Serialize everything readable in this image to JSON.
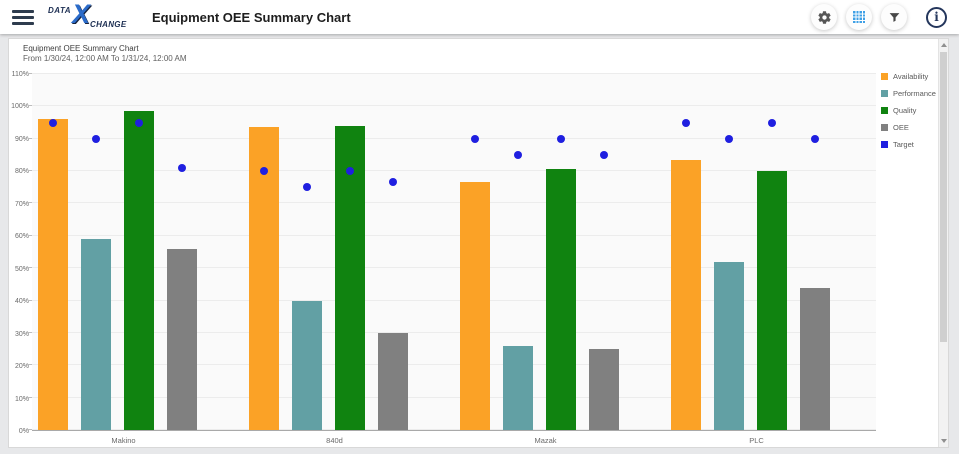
{
  "header": {
    "logo": {
      "part1": "DATA",
      "x": "X",
      "part2": "CHANGE"
    },
    "title": "Equipment OEE Summary Chart",
    "icons": [
      "settings-gear-icon",
      "grid-view-icon",
      "filter-funnel-icon",
      "info-icon"
    ],
    "info_glyph": "i"
  },
  "chart": {
    "title": "Equipment OEE Summary Chart",
    "subtitle": "From 1/30/24, 12:00 AM To 1/31/24, 12:00 AM"
  },
  "chart_data": {
    "type": "bar",
    "title": "Equipment OEE Summary Chart",
    "subtitle": "From 1/30/24, 12:00 AM To 1/31/24, 12:00 AM",
    "categories": [
      "Makino",
      "840d",
      "Mazak",
      "PLC"
    ],
    "series": [
      {
        "name": "Availability",
        "color": "#FBA226",
        "values": [
          96,
          93.5,
          76.5,
          83.5
        ]
      },
      {
        "name": "Performance",
        "color": "#62A0A4",
        "values": [
          59,
          40,
          26,
          52
        ]
      },
      {
        "name": "Quality",
        "color": "#108310",
        "values": [
          98.5,
          94,
          80.5,
          80
        ]
      },
      {
        "name": "OEE",
        "color": "#808080",
        "values": [
          56,
          30,
          25,
          44
        ]
      }
    ],
    "target_series": {
      "name": "Target",
      "color": "#1F1FE0",
      "marker": "circle",
      "values_per_category": [
        [
          95,
          90,
          95,
          81
        ],
        [
          80,
          75,
          80,
          76.5
        ],
        [
          90,
          85,
          90,
          85
        ],
        [
          95,
          90,
          95,
          90
        ]
      ]
    },
    "ylim": [
      0,
      110
    ],
    "ytick_step": 10,
    "ytick_suffix": "%",
    "grid": "horizontal",
    "legend_position": "right"
  }
}
